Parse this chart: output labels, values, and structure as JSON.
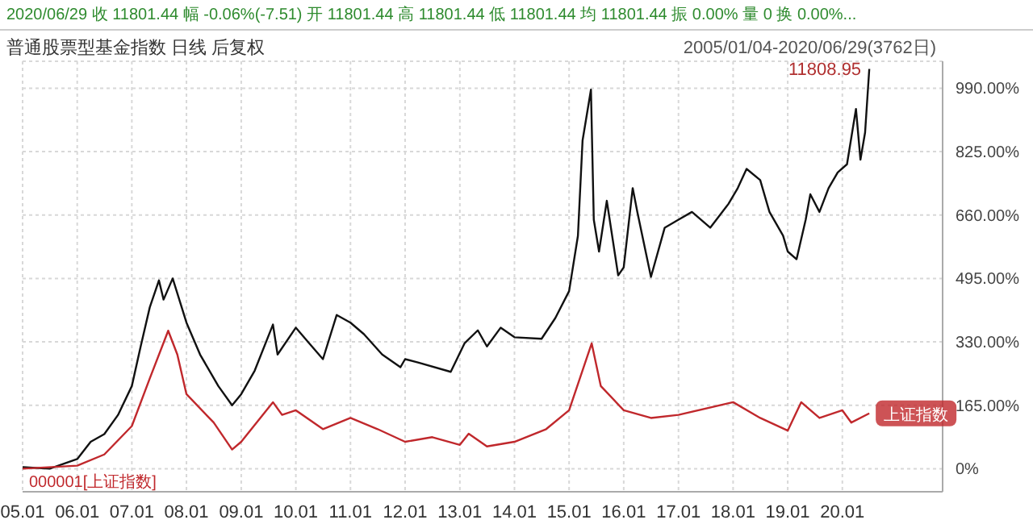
{
  "chart_data": {
    "type": "line",
    "title": "2020/06/29 收 11801.44 幅 -0.06%(-7.51) 开 11801.44 高 11801.44 低 11801.44 均 11801.44 振 0.00% 量 0 换 0.00%...",
    "subtitle": "普通股票型基金指数 日线 后复权",
    "annotations": [
      "2005/01/04-2020/06/29(3762日)",
      "000001[上证指数]",
      {
        "text": "11808.95",
        "x": "2020-06-29",
        "y": 1040
      }
    ],
    "xlim": [
      "2005-01-01",
      "2021-11-01"
    ],
    "xticks": [
      {
        "value": "2005-01",
        "label": "05.01"
      },
      {
        "value": "2006-01",
        "label": "06.01"
      },
      {
        "value": "2007-01",
        "label": "07.01"
      },
      {
        "value": "2008-01",
        "label": "08.01"
      },
      {
        "value": "2009-01",
        "label": "09.01"
      },
      {
        "value": "2010-01",
        "label": "10.01"
      },
      {
        "value": "2011-01",
        "label": "11.01"
      },
      {
        "value": "2012-01",
        "label": "12.01"
      },
      {
        "value": "2013-01",
        "label": "13.01"
      },
      {
        "value": "2014-01",
        "label": "14.01"
      },
      {
        "value": "2015-01",
        "label": "15.01"
      },
      {
        "value": "2016-01",
        "label": "16.01"
      },
      {
        "value": "2017-01",
        "label": "17.01"
      },
      {
        "value": "2018-01",
        "label": "18.01"
      },
      {
        "value": "2019-01",
        "label": "19.01"
      },
      {
        "value": "2020-01",
        "label": "20.01"
      }
    ],
    "ylim": [
      -60,
      1060
    ],
    "yticks": [
      {
        "value": 0,
        "label": "0%"
      },
      {
        "value": 165,
        "label": "165.00%"
      },
      {
        "value": 330,
        "label": "330.00%"
      },
      {
        "value": 495,
        "label": "495.00%"
      },
      {
        "value": 660,
        "label": "660.00%"
      },
      {
        "value": 825,
        "label": "825.00%"
      },
      {
        "value": 990,
        "label": "990.00%"
      }
    ],
    "grid": true,
    "marker": "none",
    "line_style": "solid",
    "series": [
      {
        "color": "#111111",
        "x": [
          "2005-01",
          "2005-07",
          "2006-01",
          "2006-04",
          "2006-07",
          "2006-10",
          "2007-01",
          "2007-03",
          "2007-05",
          "2007-07",
          "2007-08",
          "2007-10",
          "2008-01",
          "2008-04",
          "2008-08",
          "2008-11",
          "2009-01",
          "2009-04",
          "2009-08",
          "2009-09",
          "2010-01",
          "2010-04",
          "2010-07",
          "2010-10",
          "2011-01",
          "2011-04",
          "2011-08",
          "2011-12",
          "2012-01",
          "2012-04",
          "2012-11",
          "2013-02",
          "2013-05",
          "2013-07",
          "2013-10",
          "2014-01",
          "2014-07",
          "2014-10",
          "2015-01",
          "2015-03",
          "2015-04",
          "2015-05-27",
          "2015-06-15",
          "2015-07-20",
          "2015-09-10",
          "2015-11-25",
          "2016-01",
          "2016-03",
          "2016-04",
          "2016-07",
          "2016-10",
          "2017-01",
          "2017-04",
          "2017-08",
          "2017-12",
          "2018-02",
          "2018-04",
          "2018-07",
          "2018-09",
          "2018-12",
          "2019-01",
          "2019-03",
          "2019-05",
          "2019-06",
          "2019-08",
          "2019-10",
          "2019-12",
          "2020-02",
          "2020-04",
          "2020-05",
          "2020-06-01",
          "2020-06-29"
        ],
        "values": [
          4,
          0,
          25,
          70,
          90,
          140,
          215,
          318,
          420,
          490,
          440,
          495,
          380,
          297,
          215,
          165,
          194,
          255,
          375,
          297,
          367,
          326,
          285,
          400,
          380,
          350,
          297,
          264,
          285,
          276,
          252,
          326,
          360,
          318,
          367,
          342,
          338,
          392,
          462,
          606,
          854,
          986,
          648,
          565,
          697,
          503,
          524,
          730,
          668,
          499,
          627,
          648,
          668,
          627,
          689,
          730,
          780,
          751,
          668,
          606,
          565,
          545,
          648,
          714,
          668,
          730,
          771,
          792,
          936,
          804,
          875,
          1040
        ]
      },
      {
        "name": "上证指数",
        "color": "#c0282c",
        "x": [
          "2005-01",
          "2006-01",
          "2006-07",
          "2007-01",
          "2007-05",
          "2007-09",
          "2007-11",
          "2008-01",
          "2008-07",
          "2008-11",
          "2009-01",
          "2009-08",
          "2009-10",
          "2010-01",
          "2010-07",
          "2011-01",
          "2011-07",
          "2012-01",
          "2012-07",
          "2013-01",
          "2013-03",
          "2013-07",
          "2014-01",
          "2014-08",
          "2015-01",
          "2015-06",
          "2015-08",
          "2016-01",
          "2016-07",
          "2017-01",
          "2018-01",
          "2018-07",
          "2019-01",
          "2019-04",
          "2019-08",
          "2020-01",
          "2020-03",
          "2020-06-29"
        ],
        "values": [
          0,
          8,
          37,
          111,
          235,
          359,
          297,
          194,
          120,
          50,
          70,
          173,
          140,
          152,
          103,
          132,
          103,
          70,
          82,
          62,
          91,
          58,
          70,
          103,
          152,
          326,
          215,
          152,
          132,
          140,
          173,
          132,
          99,
          173,
          132,
          152,
          120,
          144
        ]
      }
    ]
  }
}
